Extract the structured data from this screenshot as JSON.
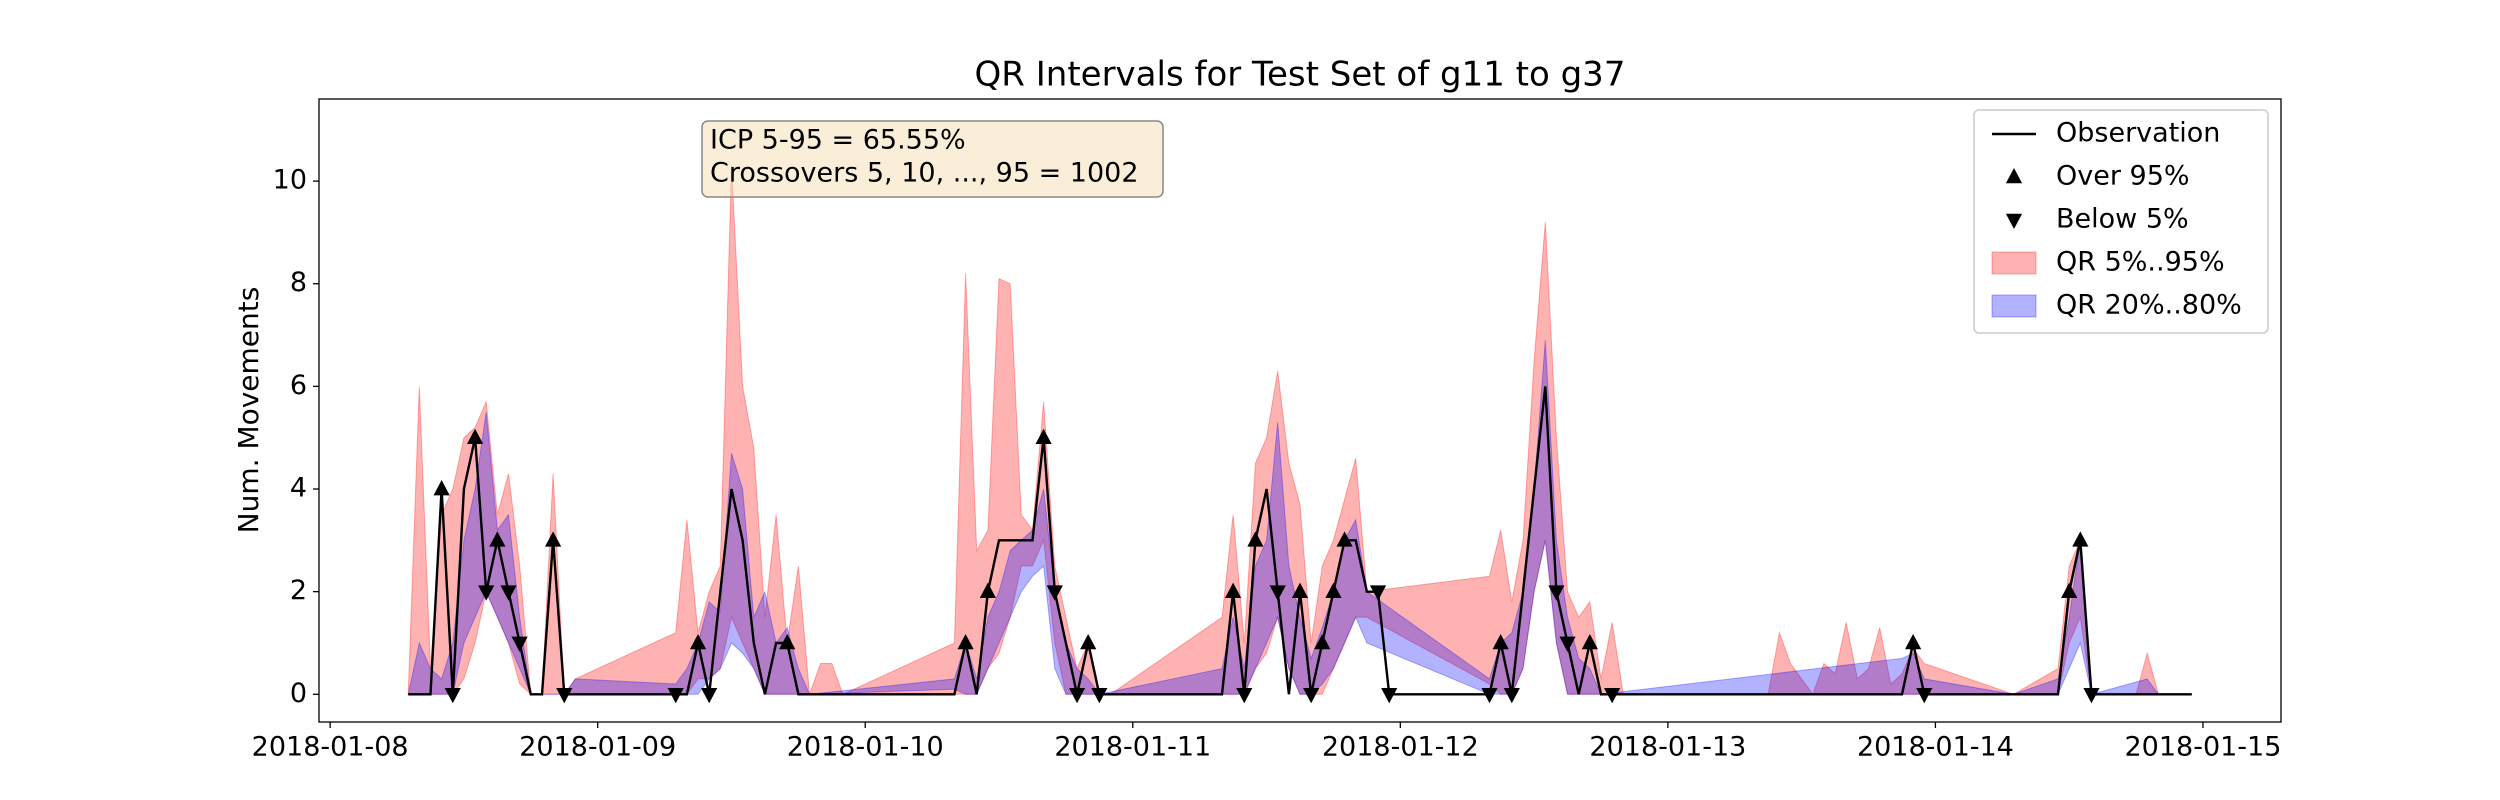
{
  "chart_data": {
    "type": "line",
    "title": "QR Intervals for Test Set of g11 to g37",
    "ylabel": "Num. Movements",
    "xlim": [
      "2018-01-07 23:00",
      "2018-01-15 07:00"
    ],
    "xticks": [
      "2018-01-08",
      "2018-01-09",
      "2018-01-10",
      "2018-01-11",
      "2018-01-12",
      "2018-01-13",
      "2018-01-14",
      "2018-01-15"
    ],
    "ylim": [
      -0.54,
      11.6
    ],
    "yticks": [
      0,
      2,
      4,
      6,
      8,
      10
    ],
    "legend": "upper right",
    "annotation": [
      "ICP 5-95 = 65.55%",
      "Crossovers 5, 10, ..., 95 = 1002"
    ],
    "series": [
      {
        "name": "Observation",
        "color": "#000000",
        "marker": "none",
        "x": [
          "2018-01-08 07:00",
          "2018-01-08 09:00",
          "2018-01-08 10:00",
          "2018-01-08 11:00",
          "2018-01-08 12:00",
          "2018-01-08 13:00",
          "2018-01-08 14:00",
          "2018-01-08 15:00",
          "2018-01-08 16:00",
          "2018-01-08 17:00",
          "2018-01-08 18:00",
          "2018-01-08 19:00",
          "2018-01-08 20:00",
          "2018-01-08 21:00",
          "2018-01-09 07:00",
          "2018-01-09 08:00",
          "2018-01-09 09:00",
          "2018-01-09 10:00",
          "2018-01-09 11:00",
          "2018-01-09 12:00",
          "2018-01-09 13:00",
          "2018-01-09 14:00",
          "2018-01-09 15:00",
          "2018-01-09 16:00",
          "2018-01-09 17:00",
          "2018-01-09 18:00",
          "2018-01-10 08:00",
          "2018-01-10 09:00",
          "2018-01-10 10:00",
          "2018-01-10 11:00",
          "2018-01-10 12:00",
          "2018-01-10 14:00",
          "2018-01-10 15:00",
          "2018-01-10 16:00",
          "2018-01-10 17:00",
          "2018-01-10 18:00",
          "2018-01-10 19:00",
          "2018-01-10 20:00",
          "2018-01-10 21:00",
          "2018-01-11 08:00",
          "2018-01-11 09:00",
          "2018-01-11 10:00",
          "2018-01-11 11:00",
          "2018-01-11 12:00",
          "2018-01-11 13:00",
          "2018-01-11 14:00",
          "2018-01-11 15:00",
          "2018-01-11 16:00",
          "2018-01-11 17:00",
          "2018-01-11 18:00",
          "2018-01-11 19:00",
          "2018-01-11 20:00",
          "2018-01-11 21:00",
          "2018-01-11 22:00",
          "2018-01-11 23:00",
          "2018-01-12 08:00",
          "2018-01-12 09:00",
          "2018-01-12 10:00",
          "2018-01-12 11:00",
          "2018-01-12 12:00",
          "2018-01-12 13:00",
          "2018-01-12 14:00",
          "2018-01-12 15:00",
          "2018-01-12 16:00",
          "2018-01-12 17:00",
          "2018-01-12 18:00",
          "2018-01-12 19:00",
          "2018-01-13 21:00",
          "2018-01-13 22:00",
          "2018-01-13 23:00",
          "2018-01-14 11:00",
          "2018-01-14 12:00",
          "2018-01-14 13:00",
          "2018-01-14 14:00",
          "2018-01-14 23:00"
        ],
        "values": [
          0,
          0,
          4,
          0,
          4,
          5,
          2,
          3,
          2,
          1,
          0,
          0,
          3,
          0,
          0,
          0,
          1,
          0,
          2,
          4,
          3,
          1,
          0,
          1,
          1,
          0,
          0,
          1,
          0,
          2,
          3,
          3,
          3,
          5,
          2,
          1,
          0,
          1,
          0,
          0,
          2,
          0,
          3,
          4,
          2,
          0,
          2,
          0,
          1,
          2,
          3,
          3,
          2,
          2,
          0,
          0,
          1,
          0,
          2,
          4,
          6,
          2,
          1,
          0,
          1,
          0,
          0,
          0,
          1,
          0,
          0,
          2,
          3,
          0,
          0
        ]
      },
      {
        "name": "Over 95%",
        "color": "#000000",
        "marker": "up",
        "x": [
          "2018-01-08 10:00",
          "2018-01-08 13:00",
          "2018-01-08 15:00",
          "2018-01-08 20:00",
          "2018-01-09 09:00",
          "2018-01-09 17:00",
          "2018-01-10 09:00",
          "2018-01-10 11:00",
          "2018-01-10 16:00",
          "2018-01-10 20:00",
          "2018-01-11 09:00",
          "2018-01-11 11:00",
          "2018-01-11 15:00",
          "2018-01-11 17:00",
          "2018-01-11 18:00",
          "2018-01-11 19:00",
          "2018-01-12 09:00",
          "2018-01-12 17:00",
          "2018-01-13 22:00",
          "2018-01-14 12:00",
          "2018-01-14 13:00"
        ],
        "values": [
          4,
          5,
          3,
          3,
          1,
          1,
          1,
          2,
          5,
          1,
          2,
          3,
          2,
          1,
          2,
          3,
          1,
          1,
          1,
          2,
          3
        ]
      },
      {
        "name": "Below 5%",
        "color": "#000000",
        "marker": "down",
        "x": [
          "2018-01-08 11:00",
          "2018-01-08 14:00",
          "2018-01-08 16:00",
          "2018-01-08 17:00",
          "2018-01-08 21:00",
          "2018-01-09 07:00",
          "2018-01-09 10:00",
          "2018-01-10 17:00",
          "2018-01-10 19:00",
          "2018-01-10 21:00",
          "2018-01-11 10:00",
          "2018-01-11 13:00",
          "2018-01-11 16:00",
          "2018-01-11 22:00",
          "2018-01-11 23:00",
          "2018-01-12 08:00",
          "2018-01-12 10:00",
          "2018-01-12 14:00",
          "2018-01-12 15:00",
          "2018-01-12 19:00",
          "2018-01-13 23:00",
          "2018-01-14 14:00"
        ],
        "values": [
          0,
          2,
          2,
          1,
          0,
          0,
          0,
          2,
          0,
          0,
          0,
          2,
          0,
          2,
          0,
          0,
          0,
          2,
          1,
          0,
          0,
          0
        ]
      }
    ],
    "bands": [
      {
        "name": "QR 5%..95%",
        "color": "#ff0000",
        "x": [
          "2018-01-08 07:00",
          "2018-01-08 08:00",
          "2018-01-08 09:00",
          "2018-01-08 10:00",
          "2018-01-08 11:00",
          "2018-01-08 12:00",
          "2018-01-08 13:00",
          "2018-01-08 14:00",
          "2018-01-08 15:00",
          "2018-01-08 16:00",
          "2018-01-08 17:00",
          "2018-01-08 18:00",
          "2018-01-08 19:00",
          "2018-01-08 20:00",
          "2018-01-08 21:00",
          "2018-01-08 22:00",
          "2018-01-09 07:00",
          "2018-01-09 08:00",
          "2018-01-09 09:00",
          "2018-01-09 10:00",
          "2018-01-09 11:00",
          "2018-01-09 12:00",
          "2018-01-09 13:00",
          "2018-01-09 14:00",
          "2018-01-09 15:00",
          "2018-01-09 16:00",
          "2018-01-09 17:00",
          "2018-01-09 18:00",
          "2018-01-09 19:00",
          "2018-01-09 20:00",
          "2018-01-09 21:00",
          "2018-01-09 22:00",
          "2018-01-10 08:00",
          "2018-01-10 09:00",
          "2018-01-10 10:00",
          "2018-01-10 11:00",
          "2018-01-10 12:00",
          "2018-01-10 13:00",
          "2018-01-10 14:00",
          "2018-01-10 15:00",
          "2018-01-10 16:00",
          "2018-01-10 17:00",
          "2018-01-10 18:00",
          "2018-01-10 19:00",
          "2018-01-10 20:00",
          "2018-01-10 21:00",
          "2018-01-10 22:00",
          "2018-01-11 08:00",
          "2018-01-11 09:00",
          "2018-01-11 10:00",
          "2018-01-11 11:00",
          "2018-01-11 12:00",
          "2018-01-11 13:00",
          "2018-01-11 14:00",
          "2018-01-11 15:00",
          "2018-01-11 16:00",
          "2018-01-11 17:00",
          "2018-01-11 18:00",
          "2018-01-11 19:00",
          "2018-01-11 20:00",
          "2018-01-11 21:00",
          "2018-01-12 08:00",
          "2018-01-12 09:00",
          "2018-01-12 10:00",
          "2018-01-12 11:00",
          "2018-01-12 12:00",
          "2018-01-12 13:00",
          "2018-01-12 14:00",
          "2018-01-12 15:00",
          "2018-01-12 16:00",
          "2018-01-12 17:00",
          "2018-01-12 18:00",
          "2018-01-12 19:00",
          "2018-01-12 20:00",
          "2018-01-13 09:00",
          "2018-01-13 10:00",
          "2018-01-13 11:00",
          "2018-01-13 12:00",
          "2018-01-13 13:00",
          "2018-01-13 14:00",
          "2018-01-13 15:00",
          "2018-01-13 16:00",
          "2018-01-13 17:00",
          "2018-01-13 18:00",
          "2018-01-13 19:00",
          "2018-01-13 20:00",
          "2018-01-13 21:00",
          "2018-01-13 22:00",
          "2018-01-13 23:00",
          "2018-01-14 07:00",
          "2018-01-14 11:00",
          "2018-01-14 12:00",
          "2018-01-14 13:00",
          "2018-01-14 14:00",
          "2018-01-14 18:00",
          "2018-01-14 19:00",
          "2018-01-14 20:00",
          "2018-01-14 23:00"
        ],
        "lower": [
          0,
          0,
          0,
          0,
          0,
          0.3,
          1,
          2,
          1.5,
          1,
          0.2,
          0,
          0,
          0,
          0,
          0,
          0,
          0,
          0.3,
          0.3,
          0.5,
          1.5,
          1,
          0.5,
          0,
          0,
          0,
          0,
          0,
          0,
          0,
          0,
          0,
          0,
          0,
          0.5,
          0.8,
          1.5,
          2.5,
          2.5,
          3,
          1,
          0,
          0,
          0,
          0,
          0,
          0,
          0,
          0,
          0.5,
          0.8,
          1.5,
          0.5,
          0,
          0,
          0,
          0.5,
          1,
          1.5,
          1.5,
          0.2,
          0,
          0,
          0.5,
          2,
          3,
          1,
          0,
          0,
          0,
          0,
          0,
          0,
          0,
          0,
          0,
          0,
          0,
          0,
          0,
          0,
          0,
          0,
          0,
          0,
          0,
          0,
          0,
          0,
          0,
          1,
          1.5,
          0,
          0,
          0,
          0,
          0
        ],
        "upper": [
          0,
          6,
          0.5,
          3.5,
          4,
          5,
          5.2,
          5.7,
          3.5,
          4.3,
          2.5,
          0,
          0,
          4.3,
          0,
          0.3,
          1.2,
          3.4,
          1.2,
          2,
          2.5,
          10.3,
          6,
          4.8,
          1.5,
          3.5,
          1,
          2.5,
          0,
          0.6,
          0.6,
          0,
          1,
          8.2,
          2.8,
          3.2,
          8.1,
          8,
          3.5,
          3.2,
          5.7,
          2.5,
          1.5,
          0.5,
          1,
          0,
          0,
          1.5,
          3.5,
          1,
          4.5,
          5,
          6.3,
          4.5,
          3.7,
          1,
          2.5,
          3,
          3.8,
          4.6,
          2,
          2.3,
          3.2,
          1.8,
          3,
          6.5,
          9.2,
          5,
          2,
          1.5,
          1.8,
          0.3,
          1.4,
          0,
          0,
          1.2,
          0.6,
          0.3,
          0,
          0.6,
          0.4,
          1.4,
          0.3,
          0.5,
          1.3,
          0.2,
          0.4,
          0.9,
          0.6,
          0,
          0.5,
          2.5,
          3,
          0,
          0,
          0.8,
          0,
          0
        ]
      },
      {
        "name": "QR 20%..80%",
        "color": "#0000ff",
        "x": [
          "2018-01-08 07:00",
          "2018-01-08 08:00",
          "2018-01-08 09:00",
          "2018-01-08 10:00",
          "2018-01-08 11:00",
          "2018-01-08 12:00",
          "2018-01-08 13:00",
          "2018-01-08 14:00",
          "2018-01-08 15:00",
          "2018-01-08 16:00",
          "2018-01-08 17:00",
          "2018-01-08 18:00",
          "2018-01-08 21:00",
          "2018-01-08 22:00",
          "2018-01-09 07:00",
          "2018-01-09 08:00",
          "2018-01-09 09:00",
          "2018-01-09 10:00",
          "2018-01-09 11:00",
          "2018-01-09 12:00",
          "2018-01-09 13:00",
          "2018-01-09 14:00",
          "2018-01-09 15:00",
          "2018-01-09 16:00",
          "2018-01-09 17:00",
          "2018-01-09 18:00",
          "2018-01-09 19:00",
          "2018-01-10 08:00",
          "2018-01-10 09:00",
          "2018-01-10 10:00",
          "2018-01-10 11:00",
          "2018-01-10 12:00",
          "2018-01-10 13:00",
          "2018-01-10 14:00",
          "2018-01-10 15:00",
          "2018-01-10 16:00",
          "2018-01-10 17:00",
          "2018-01-10 18:00",
          "2018-01-10 19:00",
          "2018-01-10 20:00",
          "2018-01-10 21:00",
          "2018-01-11 08:00",
          "2018-01-11 09:00",
          "2018-01-11 10:00",
          "2018-01-11 11:00",
          "2018-01-11 12:00",
          "2018-01-11 13:00",
          "2018-01-11 14:00",
          "2018-01-11 15:00",
          "2018-01-11 16:00",
          "2018-01-11 17:00",
          "2018-01-11 18:00",
          "2018-01-11 19:00",
          "2018-01-11 20:00",
          "2018-01-11 21:00",
          "2018-01-12 08:00",
          "2018-01-12 09:00",
          "2018-01-12 10:00",
          "2018-01-12 11:00",
          "2018-01-12 12:00",
          "2018-01-12 13:00",
          "2018-01-12 14:00",
          "2018-01-12 15:00",
          "2018-01-12 16:00",
          "2018-01-12 17:00",
          "2018-01-12 18:00",
          "2018-01-13 21:00",
          "2018-01-13 22:00",
          "2018-01-13 23:00",
          "2018-01-14 07:00",
          "2018-01-14 11:00",
          "2018-01-14 12:00",
          "2018-01-14 13:00",
          "2018-01-14 14:00",
          "2018-01-14 19:00",
          "2018-01-14 20:00",
          "2018-01-14 23:00"
        ],
        "lower": [
          0,
          0,
          0,
          0,
          0,
          1,
          1.5,
          2,
          1.5,
          1,
          0.5,
          0,
          0,
          0,
          0,
          0,
          0,
          0.3,
          0.5,
          1,
          0.8,
          0.5,
          0,
          0,
          0,
          0,
          0,
          0.1,
          0,
          0,
          0.5,
          1,
          1.5,
          2,
          2.3,
          2.5,
          0.5,
          0,
          0,
          0,
          0,
          0,
          0,
          0,
          0.5,
          1,
          1.5,
          0.5,
          0,
          0,
          0.2,
          0.5,
          1,
          1.5,
          1,
          0,
          0,
          0,
          0.5,
          2,
          3,
          1,
          0,
          0,
          0,
          0,
          0,
          0,
          0,
          0,
          0,
          0.5,
          1,
          0,
          0,
          0,
          0
        ],
        "upper": [
          0,
          1,
          0.5,
          0.3,
          1,
          3,
          4,
          5.5,
          3.2,
          3.5,
          1.5,
          0,
          0,
          0.3,
          0.2,
          0.5,
          1,
          1.8,
          1.6,
          4.7,
          4,
          1.5,
          2,
          1,
          1.3,
          0.5,
          0,
          0.3,
          1,
          0.3,
          1.5,
          2,
          2.8,
          3,
          3.2,
          4,
          2,
          1,
          0.5,
          0.3,
          0,
          0.5,
          1.5,
          0.5,
          2.5,
          3,
          5.3,
          2.5,
          1.5,
          0.7,
          1.3,
          2,
          3,
          3.4,
          2,
          0.3,
          1,
          1.2,
          2,
          4,
          6.9,
          3,
          1.5,
          0.7,
          0.5,
          0,
          0.7,
          0.8,
          0.3,
          0,
          0.3,
          1.5,
          3,
          0,
          0.3,
          0,
          0
        ]
      }
    ]
  }
}
